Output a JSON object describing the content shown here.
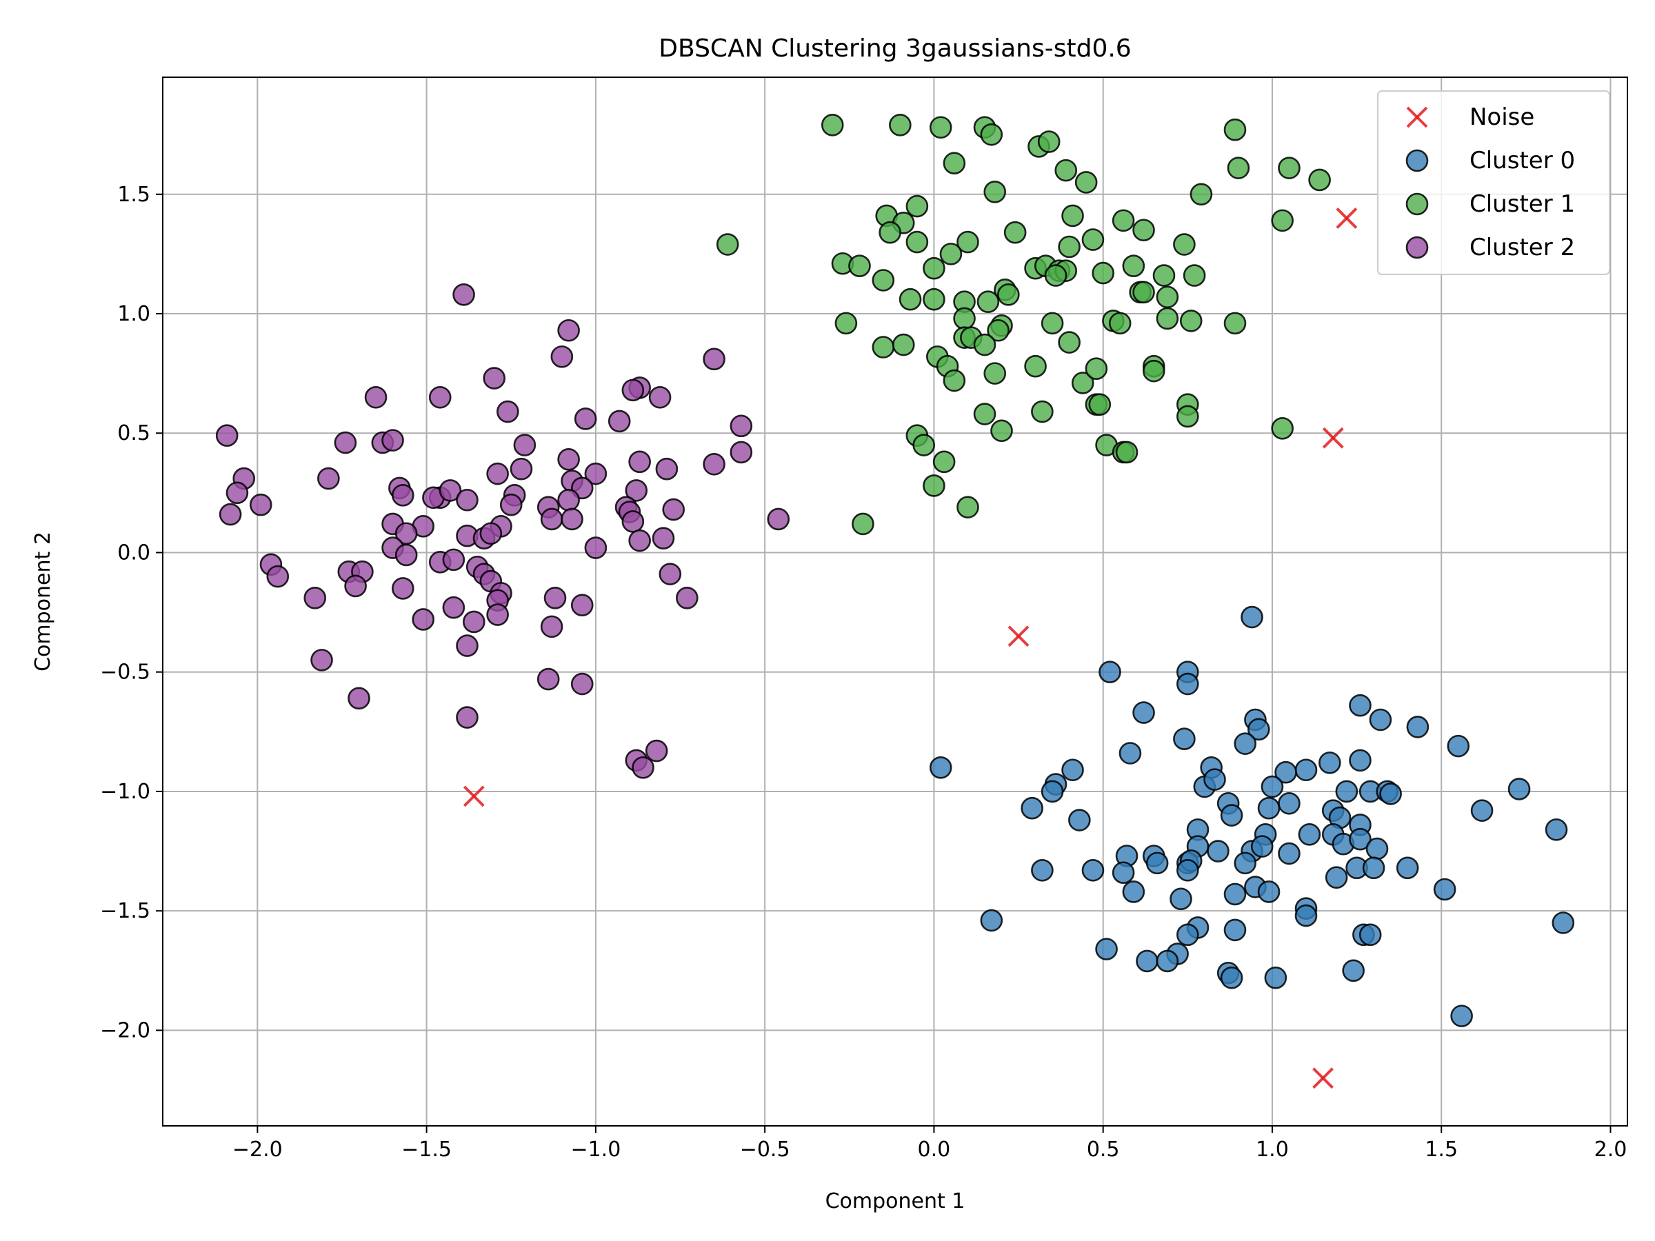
{
  "chart_data": {
    "type": "scatter",
    "title": "DBSCAN Clustering 3gaussians-std0.6",
    "xlabel": "Component 1",
    "ylabel": "Component 2",
    "xlim": [
      -2.28,
      2.05
    ],
    "ylim": [
      -2.4,
      1.99
    ],
    "xticks": [
      -2.0,
      -1.5,
      -1.0,
      -0.5,
      0.0,
      0.5,
      1.0,
      1.5,
      2.0
    ],
    "yticks": [
      -2.0,
      -1.5,
      -1.0,
      -0.5,
      0.0,
      0.5,
      1.0,
      1.5
    ],
    "xtick_labels": [
      "−2.0",
      "−1.5",
      "−1.0",
      "−0.5",
      "0.0",
      "0.5",
      "1.0",
      "1.5",
      "2.0"
    ],
    "ytick_labels": [
      "−2.0",
      "−1.5",
      "−1.0",
      "−0.5",
      "0.0",
      "0.5",
      "1.0",
      "1.5"
    ],
    "grid": true,
    "legend_position": "top-right",
    "series": [
      {
        "name": "Noise",
        "marker": "x",
        "color": "#e41a1c",
        "points": [
          [
            1.22,
            1.4
          ],
          [
            1.18,
            0.48
          ],
          [
            0.25,
            -0.35
          ],
          [
            -1.36,
            -1.02
          ],
          [
            1.15,
            -2.2
          ]
        ]
      },
      {
        "name": "Cluster 0",
        "marker": "circle",
        "color": "#377eb8",
        "points": [
          [
            0.94,
            -0.27
          ],
          [
            0.52,
            -0.5
          ],
          [
            0.75,
            -0.5
          ],
          [
            0.75,
            -0.55
          ],
          [
            0.62,
            -0.67
          ],
          [
            1.26,
            -0.64
          ],
          [
            1.32,
            -0.7
          ],
          [
            0.95,
            -0.7
          ],
          [
            0.96,
            -0.74
          ],
          [
            1.43,
            -0.73
          ],
          [
            0.58,
            -0.84
          ],
          [
            0.74,
            -0.78
          ],
          [
            0.92,
            -0.8
          ],
          [
            1.55,
            -0.81
          ],
          [
            0.02,
            -0.9
          ],
          [
            0.41,
            -0.91
          ],
          [
            0.82,
            -0.9
          ],
          [
            1.1,
            -0.91
          ],
          [
            1.17,
            -0.88
          ],
          [
            1.26,
            -0.87
          ],
          [
            1.04,
            -0.92
          ],
          [
            0.36,
            -0.97
          ],
          [
            0.35,
            -1.0
          ],
          [
            0.8,
            -0.98
          ],
          [
            0.83,
            -0.95
          ],
          [
            1.0,
            -0.98
          ],
          [
            1.22,
            -1.0
          ],
          [
            1.29,
            -1.0
          ],
          [
            1.34,
            -1.0
          ],
          [
            1.35,
            -1.01
          ],
          [
            1.73,
            -0.99
          ],
          [
            0.29,
            -1.07
          ],
          [
            0.87,
            -1.05
          ],
          [
            0.99,
            -1.07
          ],
          [
            1.05,
            -1.05
          ],
          [
            1.62,
            -1.08
          ],
          [
            0.43,
            -1.12
          ],
          [
            0.88,
            -1.1
          ],
          [
            1.18,
            -1.08
          ],
          [
            1.2,
            -1.11
          ],
          [
            0.78,
            -1.16
          ],
          [
            0.98,
            -1.18
          ],
          [
            1.11,
            -1.18
          ],
          [
            1.18,
            -1.18
          ],
          [
            1.26,
            -1.14
          ],
          [
            1.84,
            -1.16
          ],
          [
            0.78,
            -1.23
          ],
          [
            0.84,
            -1.25
          ],
          [
            0.94,
            -1.25
          ],
          [
            0.97,
            -1.23
          ],
          [
            1.05,
            -1.26
          ],
          [
            1.21,
            -1.22
          ],
          [
            1.26,
            -1.2
          ],
          [
            1.31,
            -1.24
          ],
          [
            0.57,
            -1.27
          ],
          [
            0.65,
            -1.27
          ],
          [
            0.66,
            -1.3
          ],
          [
            0.75,
            -1.3
          ],
          [
            0.76,
            -1.29
          ],
          [
            0.92,
            -1.3
          ],
          [
            0.32,
            -1.33
          ],
          [
            0.47,
            -1.33
          ],
          [
            0.56,
            -1.34
          ],
          [
            0.75,
            -1.33
          ],
          [
            1.25,
            -1.32
          ],
          [
            1.3,
            -1.32
          ],
          [
            1.4,
            -1.32
          ],
          [
            0.95,
            -1.4
          ],
          [
            0.99,
            -1.42
          ],
          [
            1.51,
            -1.41
          ],
          [
            0.59,
            -1.42
          ],
          [
            0.73,
            -1.45
          ],
          [
            0.89,
            -1.43
          ],
          [
            1.19,
            -1.36
          ],
          [
            1.1,
            -1.49
          ],
          [
            1.1,
            -1.52
          ],
          [
            0.17,
            -1.54
          ],
          [
            1.86,
            -1.55
          ],
          [
            0.78,
            -1.57
          ],
          [
            0.89,
            -1.58
          ],
          [
            0.75,
            -1.6
          ],
          [
            1.27,
            -1.6
          ],
          [
            1.29,
            -1.6
          ],
          [
            0.51,
            -1.66
          ],
          [
            0.72,
            -1.68
          ],
          [
            0.63,
            -1.71
          ],
          [
            0.69,
            -1.71
          ],
          [
            0.87,
            -1.76
          ],
          [
            0.88,
            -1.78
          ],
          [
            1.01,
            -1.78
          ],
          [
            1.24,
            -1.75
          ],
          [
            1.56,
            -1.94
          ]
        ]
      },
      {
        "name": "Cluster 1",
        "marker": "circle",
        "color": "#4daf4a",
        "points": [
          [
            -0.3,
            1.79
          ],
          [
            -0.1,
            1.79
          ],
          [
            0.02,
            1.78
          ],
          [
            0.15,
            1.78
          ],
          [
            0.17,
            1.75
          ],
          [
            0.31,
            1.7
          ],
          [
            0.34,
            1.72
          ],
          [
            0.89,
            1.77
          ],
          [
            0.06,
            1.63
          ],
          [
            0.39,
            1.6
          ],
          [
            0.45,
            1.55
          ],
          [
            0.9,
            1.61
          ],
          [
            1.05,
            1.61
          ],
          [
            1.14,
            1.56
          ],
          [
            0.18,
            1.51
          ],
          [
            0.79,
            1.5
          ],
          [
            -0.05,
            1.45
          ],
          [
            -0.14,
            1.41
          ],
          [
            -0.09,
            1.38
          ],
          [
            -0.13,
            1.34
          ],
          [
            0.41,
            1.41
          ],
          [
            0.56,
            1.39
          ],
          [
            0.62,
            1.35
          ],
          [
            1.03,
            1.39
          ],
          [
            -0.05,
            1.3
          ],
          [
            0.24,
            1.34
          ],
          [
            0.1,
            1.3
          ],
          [
            -0.61,
            1.29
          ],
          [
            0.05,
            1.25
          ],
          [
            0.4,
            1.28
          ],
          [
            0.47,
            1.31
          ],
          [
            0.74,
            1.29
          ],
          [
            -0.27,
            1.21
          ],
          [
            -0.22,
            1.2
          ],
          [
            0.0,
            1.19
          ],
          [
            0.3,
            1.19
          ],
          [
            0.33,
            1.2
          ],
          [
            0.37,
            1.18
          ],
          [
            0.39,
            1.18
          ],
          [
            0.59,
            1.2
          ],
          [
            -0.15,
            1.14
          ],
          [
            0.36,
            1.16
          ],
          [
            0.5,
            1.17
          ],
          [
            0.68,
            1.16
          ],
          [
            0.77,
            1.16
          ],
          [
            0.61,
            1.09
          ],
          [
            0.62,
            1.09
          ],
          [
            0.21,
            1.1
          ],
          [
            0.22,
            1.08
          ],
          [
            -0.07,
            1.06
          ],
          [
            0.0,
            1.06
          ],
          [
            0.09,
            1.05
          ],
          [
            0.16,
            1.05
          ],
          [
            0.69,
            1.07
          ],
          [
            -0.26,
            0.96
          ],
          [
            0.09,
            0.98
          ],
          [
            0.2,
            0.95
          ],
          [
            0.35,
            0.96
          ],
          [
            0.53,
            0.97
          ],
          [
            0.55,
            0.96
          ],
          [
            0.69,
            0.98
          ],
          [
            0.76,
            0.97
          ],
          [
            0.89,
            0.96
          ],
          [
            0.09,
            0.9
          ],
          [
            0.11,
            0.9
          ],
          [
            0.19,
            0.93
          ],
          [
            0.15,
            0.87
          ],
          [
            0.4,
            0.88
          ],
          [
            -0.15,
            0.86
          ],
          [
            -0.09,
            0.87
          ],
          [
            0.01,
            0.82
          ],
          [
            0.04,
            0.78
          ],
          [
            0.06,
            0.72
          ],
          [
            0.18,
            0.75
          ],
          [
            0.3,
            0.78
          ],
          [
            0.44,
            0.71
          ],
          [
            0.48,
            0.77
          ],
          [
            0.48,
            0.62
          ],
          [
            0.49,
            0.62
          ],
          [
            0.65,
            0.78
          ],
          [
            0.65,
            0.76
          ],
          [
            0.15,
            0.58
          ],
          [
            0.32,
            0.59
          ],
          [
            0.75,
            0.62
          ],
          [
            0.75,
            0.57
          ],
          [
            0.2,
            0.51
          ],
          [
            1.03,
            0.52
          ],
          [
            -0.05,
            0.49
          ],
          [
            -0.03,
            0.45
          ],
          [
            0.51,
            0.45
          ],
          [
            0.56,
            0.42
          ],
          [
            0.57,
            0.42
          ],
          [
            0.03,
            0.38
          ],
          [
            0.0,
            0.28
          ],
          [
            -0.21,
            0.12
          ],
          [
            0.1,
            0.19
          ]
        ]
      },
      {
        "name": "Cluster 2",
        "marker": "circle",
        "color": "#984ea3",
        "points": [
          [
            -1.39,
            1.08
          ],
          [
            -1.08,
            0.93
          ],
          [
            -1.1,
            0.82
          ],
          [
            -0.65,
            0.81
          ],
          [
            -1.3,
            0.73
          ],
          [
            -0.87,
            0.69
          ],
          [
            -0.89,
            0.68
          ],
          [
            -1.65,
            0.65
          ],
          [
            -1.46,
            0.65
          ],
          [
            -0.81,
            0.65
          ],
          [
            -1.26,
            0.59
          ],
          [
            -1.03,
            0.56
          ],
          [
            -0.93,
            0.55
          ],
          [
            -0.57,
            0.53
          ],
          [
            -2.09,
            0.49
          ],
          [
            -1.74,
            0.46
          ],
          [
            -1.63,
            0.46
          ],
          [
            -1.6,
            0.47
          ],
          [
            -1.21,
            0.45
          ],
          [
            -0.57,
            0.42
          ],
          [
            -1.08,
            0.39
          ],
          [
            -0.87,
            0.38
          ],
          [
            -1.22,
            0.35
          ],
          [
            -1.0,
            0.33
          ],
          [
            -0.65,
            0.37
          ],
          [
            -0.79,
            0.35
          ],
          [
            -1.79,
            0.31
          ],
          [
            -2.04,
            0.31
          ],
          [
            -1.29,
            0.33
          ],
          [
            -1.07,
            0.3
          ],
          [
            -1.04,
            0.27
          ],
          [
            -0.88,
            0.26
          ],
          [
            -2.06,
            0.25
          ],
          [
            -1.58,
            0.27
          ],
          [
            -1.57,
            0.24
          ],
          [
            -1.46,
            0.23
          ],
          [
            -1.48,
            0.23
          ],
          [
            -1.43,
            0.26
          ],
          [
            -1.38,
            0.22
          ],
          [
            -1.24,
            0.24
          ],
          [
            -1.08,
            0.22
          ],
          [
            -1.99,
            0.2
          ],
          [
            -1.25,
            0.2
          ],
          [
            -1.14,
            0.19
          ],
          [
            -2.08,
            0.16
          ],
          [
            -0.91,
            0.19
          ],
          [
            -0.9,
            0.17
          ],
          [
            -0.77,
            0.18
          ],
          [
            -0.46,
            0.14
          ],
          [
            -1.6,
            0.12
          ],
          [
            -1.51,
            0.11
          ],
          [
            -1.28,
            0.11
          ],
          [
            -1.13,
            0.14
          ],
          [
            -1.07,
            0.14
          ],
          [
            -0.89,
            0.13
          ],
          [
            -1.56,
            0.08
          ],
          [
            -1.38,
            0.07
          ],
          [
            -1.33,
            0.06
          ],
          [
            -1.31,
            0.08
          ],
          [
            -0.87,
            0.05
          ],
          [
            -0.8,
            0.06
          ],
          [
            -1.6,
            0.02
          ],
          [
            -1.56,
            -0.01
          ],
          [
            -1.0,
            0.02
          ],
          [
            -1.46,
            -0.04
          ],
          [
            -1.42,
            -0.03
          ],
          [
            -1.35,
            -0.06
          ],
          [
            -1.33,
            -0.09
          ],
          [
            -1.96,
            -0.05
          ],
          [
            -1.94,
            -0.1
          ],
          [
            -1.73,
            -0.08
          ],
          [
            -1.69,
            -0.08
          ],
          [
            -1.71,
            -0.14
          ],
          [
            -1.57,
            -0.15
          ],
          [
            -1.31,
            -0.12
          ],
          [
            -1.28,
            -0.17
          ],
          [
            -1.29,
            -0.2
          ],
          [
            -0.78,
            -0.09
          ],
          [
            -1.83,
            -0.19
          ],
          [
            -1.12,
            -0.19
          ],
          [
            -0.73,
            -0.19
          ],
          [
            -1.42,
            -0.23
          ],
          [
            -1.04,
            -0.22
          ],
          [
            -1.51,
            -0.28
          ],
          [
            -1.36,
            -0.29
          ],
          [
            -1.29,
            -0.26
          ],
          [
            -1.13,
            -0.31
          ],
          [
            -1.38,
            -0.39
          ],
          [
            -1.81,
            -0.45
          ],
          [
            -1.14,
            -0.53
          ],
          [
            -1.04,
            -0.55
          ],
          [
            -1.7,
            -0.61
          ],
          [
            -1.38,
            -0.69
          ],
          [
            -0.88,
            -0.87
          ],
          [
            -0.86,
            -0.9
          ],
          [
            -0.82,
            -0.83
          ]
        ]
      }
    ]
  }
}
